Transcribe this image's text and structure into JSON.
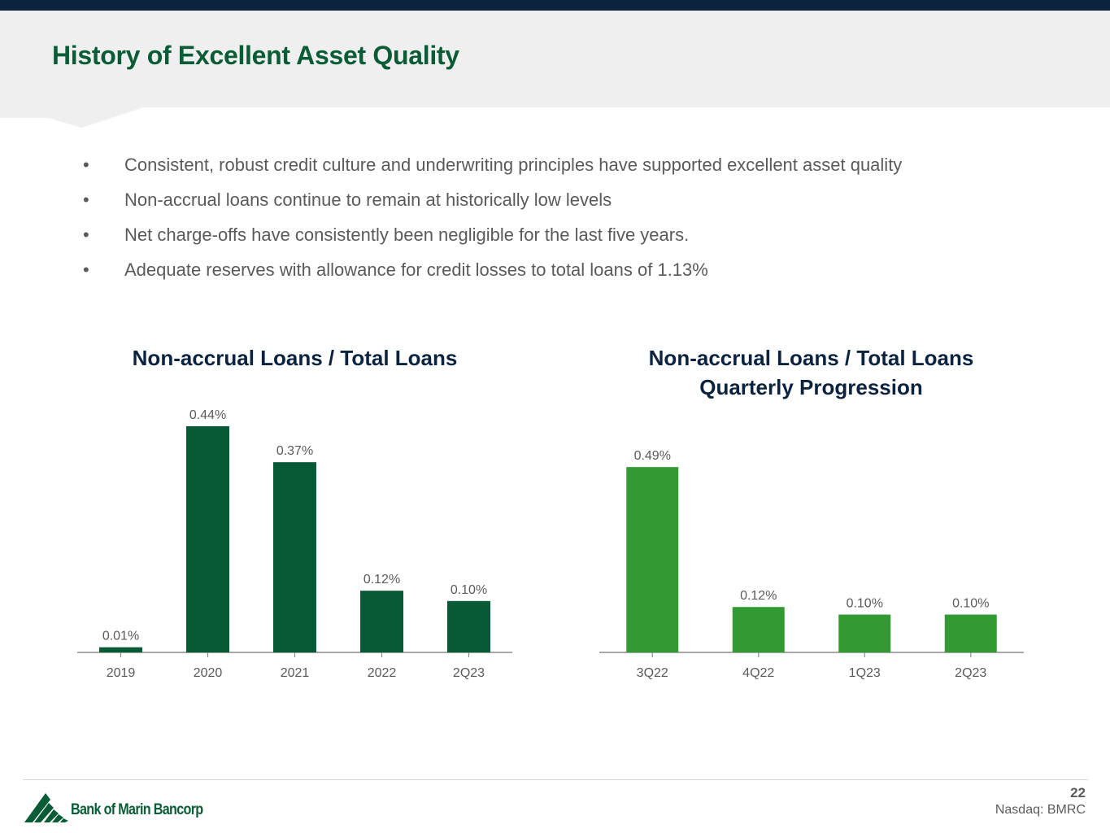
{
  "slide": {
    "title": "History of Excellent Asset Quality",
    "page_number": "22",
    "ticker": "Nasdaq: BMRC",
    "logo_text": "Bank of Marin Bancorp",
    "bullet_symbol": "•",
    "bullets": [
      "Consistent, robust credit culture and underwriting principles have supported excellent asset quality",
      "Non-accrual loans continue to remain at historically low levels",
      "Net charge-offs have consistently been negligible for the last five years.",
      "Adequate reserves with allowance for credit losses to total loans of 1.13%"
    ]
  },
  "colors": {
    "brand_navy": "#0c2340",
    "brand_green": "#0a5c36",
    "annual_bar": "#085a37",
    "quarterly_bar": "#339933",
    "text_gray": "#5a5a5a"
  },
  "chart_data": [
    {
      "type": "bar",
      "title": "Non-accrual Loans / Total Loans",
      "categories": [
        "2019",
        "2020",
        "2021",
        "2022",
        "2Q23"
      ],
      "values": [
        0.01,
        0.44,
        0.37,
        0.12,
        0.1
      ],
      "data_labels": [
        "0.01%",
        "0.44%",
        "0.37%",
        "0.12%",
        "0.10%"
      ],
      "xlabel": "",
      "ylabel": "",
      "ylim": [
        0,
        0.5
      ],
      "grid": false,
      "legend": "none",
      "bar_color": "#085a37"
    },
    {
      "type": "bar",
      "title": "Non-accrual Loans / Total Loans Quarterly Progression",
      "title_lines": [
        "Non-accrual Loans / Total Loans",
        "Quarterly Progression"
      ],
      "categories": [
        "3Q22",
        "4Q22",
        "1Q23",
        "2Q23"
      ],
      "values": [
        0.49,
        0.12,
        0.1,
        0.1
      ],
      "data_labels": [
        "0.49%",
        "0.12%",
        "0.10%",
        "0.10%"
      ],
      "xlabel": "",
      "ylabel": "",
      "ylim": [
        0,
        0.5
      ],
      "grid": false,
      "legend": "none",
      "bar_color": "#339933"
    }
  ]
}
